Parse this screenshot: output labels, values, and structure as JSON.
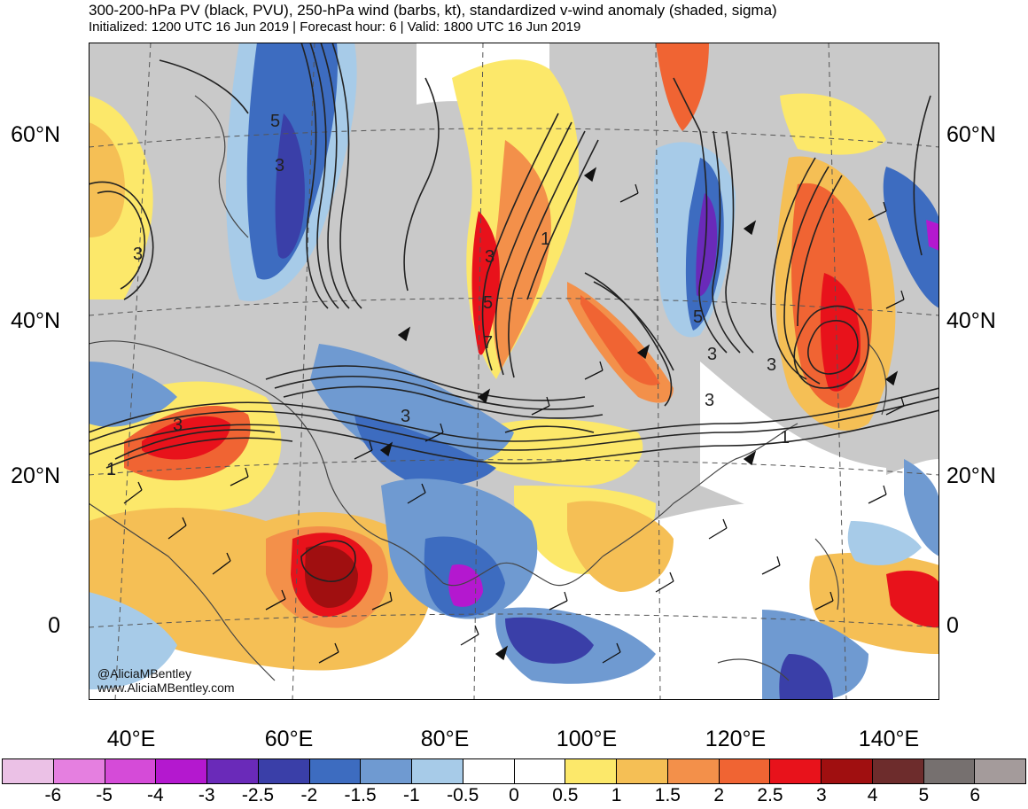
{
  "title": "300-200-hPa PV (black, PVU), 250-hPa wind (barbs, kt), standardized v-wind anomaly (shaded, sigma)",
  "subtitle": "Initialized: 1200 UTC 16 Jun 2019 | Forecast hour: 6 | Valid: 1800 UTC 16 Jun 2019",
  "credit": {
    "handle": "@AliciaMBentley",
    "url": "www.AliciaMBentley.com"
  },
  "lat_labels": [
    "60°N",
    "40°N",
    "20°N",
    "0"
  ],
  "lon_labels": [
    "40°E",
    "60°E",
    "80°E",
    "100°E",
    "120°E",
    "140°E"
  ],
  "colorbar": {
    "labels": [
      "-6",
      "-5",
      "-4",
      "-3",
      "-2.5",
      "-2",
      "-1.5",
      "-1",
      "-0.5",
      "0",
      "0.5",
      "1",
      "1.5",
      "2",
      "2.5",
      "3",
      "4",
      "5",
      "6"
    ],
    "colors": [
      "#ebc1e6",
      "#e57fe0",
      "#d54bd8",
      "#b418cf",
      "#6a2ab9",
      "#3a3fa8",
      "#3d6cc0",
      "#6f9ad1",
      "#a7cbe8",
      "#ffffff",
      "#ffffff",
      "#fce86a",
      "#f5bf55",
      "#f3904a",
      "#f06433",
      "#e8121b",
      "#a00f10",
      "#6d2c2c",
      "#76706f",
      "#a49b9b"
    ]
  },
  "pv_contour_labels": [
    "5",
    "3",
    "3",
    "1",
    "3",
    "5",
    "7",
    "5",
    "3",
    "3",
    "3",
    "1",
    "3",
    "1",
    "3"
  ]
}
